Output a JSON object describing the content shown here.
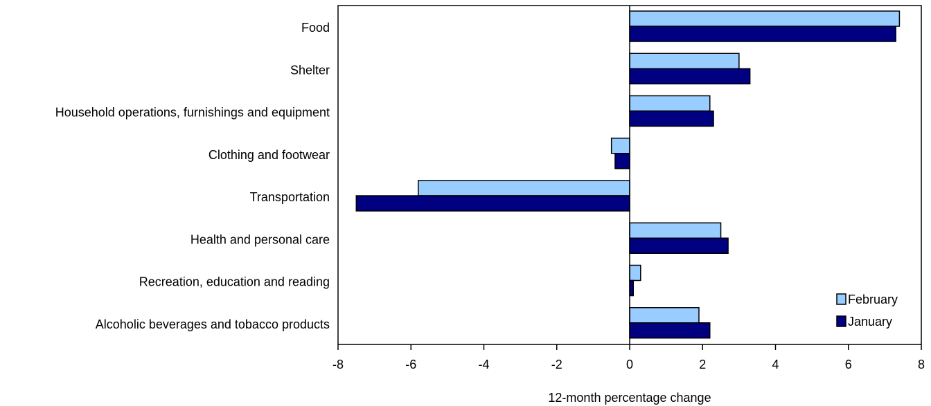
{
  "chart_data": {
    "type": "bar",
    "orientation": "horizontal",
    "categories": [
      "Food",
      "Shelter",
      "Household operations, furnishings and equipment",
      "Clothing and footwear",
      "Transportation",
      "Health and personal care",
      "Recreation, education and reading",
      "Alcoholic beverages and tobacco products"
    ],
    "series": [
      {
        "name": "February",
        "color": "#99ccff",
        "values": [
          7.4,
          3.0,
          2.2,
          -0.5,
          -5.8,
          2.5,
          0.3,
          1.9
        ]
      },
      {
        "name": "January",
        "color": "#000080",
        "values": [
          7.3,
          3.3,
          2.3,
          -0.4,
          -7.5,
          2.7,
          0.1,
          2.2
        ]
      }
    ],
    "xlabel": "12-month  percentage change",
    "ylabel": "",
    "xlim": [
      -8,
      8
    ],
    "xticks": [
      -8,
      -6,
      -4,
      -2,
      0,
      2,
      4,
      6,
      8
    ],
    "grid": false,
    "legend_position": "bottom-right"
  }
}
